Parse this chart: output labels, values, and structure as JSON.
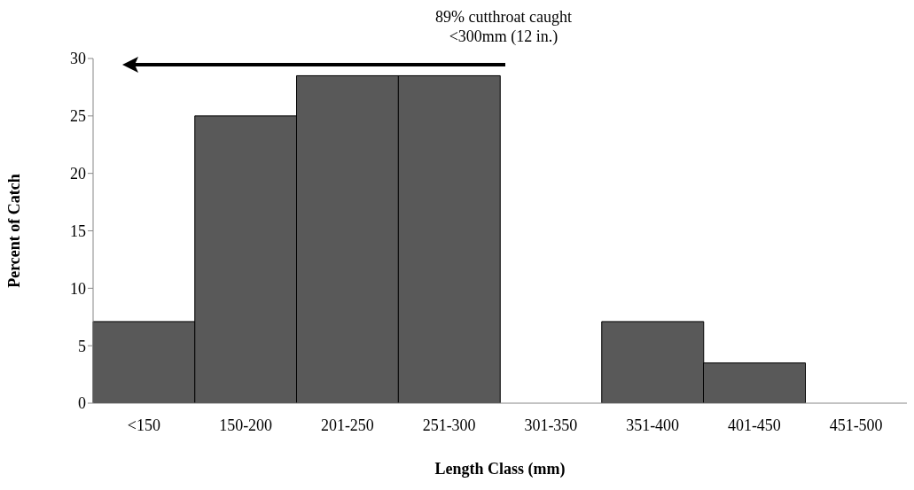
{
  "chart_data": {
    "type": "bar",
    "xlabel": "Length Class (mm)",
    "ylabel": "Percent of Catch",
    "categories": [
      "<150",
      "150-200",
      "201-250",
      "251-300",
      "301-350",
      "351-400",
      "401-450",
      "451-500"
    ],
    "values": [
      7.1,
      25,
      28.5,
      28.5,
      0,
      7.1,
      3.5,
      0
    ],
    "color": "#595959",
    "ylim": [
      0,
      30
    ],
    "yticks": [
      0,
      5,
      10,
      15,
      20,
      25,
      30
    ],
    "annotations": [
      "89% cutthroat caught",
      "<300mm (12 in.)"
    ]
  }
}
